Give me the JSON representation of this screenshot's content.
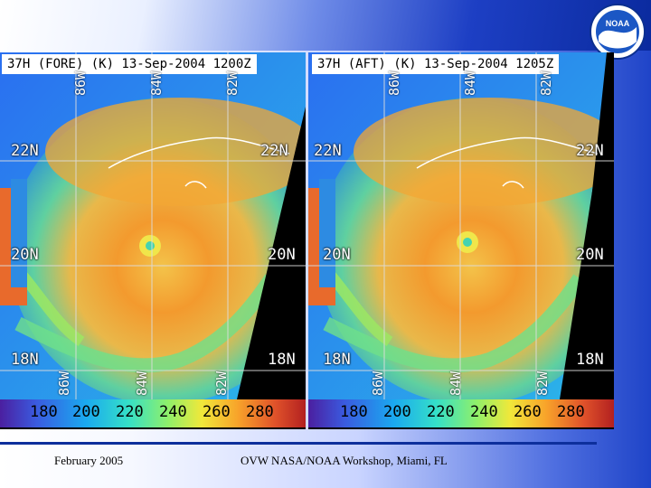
{
  "slide": {
    "footer_date": "February 2005",
    "footer_event": "OVW NASA/NOAA Workshop, Miami, FL",
    "logo_text": "NOAA"
  },
  "panels": [
    {
      "title": "37H (FORE) (K) 13-Sep-2004 1200Z",
      "lat_labels_left": [
        "22N",
        "20N",
        "18N"
      ],
      "lat_labels_right": [
        "22N",
        "20N",
        "18N"
      ],
      "lon_labels": [
        "86W",
        "84W",
        "82W",
        "86W",
        "84W",
        "82W"
      ],
      "colorbar_ticks": [
        "180",
        "200",
        "220",
        "240",
        "260",
        "280"
      ]
    },
    {
      "title": "37H (AFT) (K) 13-Sep-2004 1205Z",
      "lat_labels_left": [
        "22N",
        "20N",
        "18N"
      ],
      "lat_labels_right": [
        "22N",
        "20N",
        "18N"
      ],
      "lon_labels": [
        "86W",
        "84W",
        "82W",
        "86W",
        "84W",
        "82W"
      ],
      "colorbar_ticks": [
        "180",
        "200",
        "220",
        "240",
        "260",
        "280"
      ]
    }
  ],
  "colors": {
    "slide_blue": "#0d2f9c",
    "colorbar_low": "#4b1fa0",
    "colorbar_high": "#b22020"
  }
}
